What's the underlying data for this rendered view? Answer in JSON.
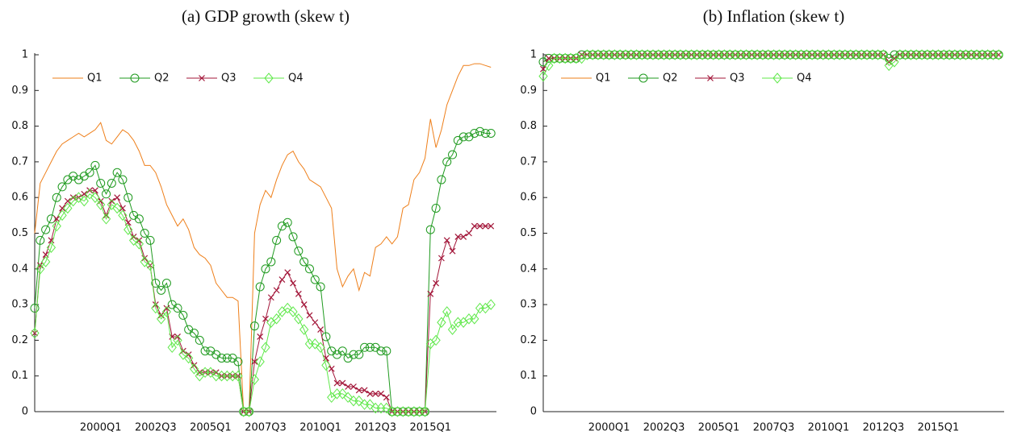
{
  "chart_data": [
    {
      "type": "line",
      "title": "(a) GDP growth (skew t)",
      "legend": "upper left",
      "grid": false,
      "ylim": [
        0,
        1
      ],
      "yticks": [
        0,
        0.1,
        0.2,
        0.3,
        0.4,
        0.5,
        0.6,
        0.7,
        0.8,
        0.9,
        1
      ],
      "categories": [
        null,
        null,
        null,
        null,
        null,
        null,
        null,
        null,
        null,
        null,
        null,
        null,
        "2000Q1",
        null,
        null,
        null,
        null,
        null,
        null,
        null,
        null,
        null,
        "2002Q3",
        null,
        null,
        null,
        null,
        null,
        null,
        null,
        null,
        null,
        "2005Q1",
        null,
        null,
        null,
        null,
        null,
        null,
        null,
        null,
        null,
        "2007Q3",
        null,
        null,
        null,
        null,
        null,
        null,
        null,
        null,
        null,
        "2010Q1",
        null,
        null,
        null,
        null,
        null,
        null,
        null,
        null,
        null,
        "2012Q3",
        null,
        null,
        null,
        null,
        null,
        null,
        null,
        null,
        null,
        "2015Q1",
        null,
        null,
        null,
        null,
        null,
        null,
        null,
        null,
        null,
        null,
        null
      ],
      "series": [
        {
          "name": "Q1",
          "color": "#ee7f1a",
          "marker": "none",
          "values": [
            0.5,
            0.64,
            0.67,
            0.7,
            0.73,
            0.75,
            0.76,
            0.77,
            0.78,
            0.77,
            0.78,
            0.79,
            0.81,
            0.76,
            0.75,
            0.77,
            0.79,
            0.78,
            0.76,
            0.73,
            0.69,
            0.69,
            0.67,
            0.63,
            0.58,
            0.55,
            0.52,
            0.54,
            0.51,
            0.46,
            0.44,
            0.43,
            0.41,
            0.36,
            0.34,
            0.32,
            0.32,
            0.31,
            0,
            0,
            0.5,
            0.58,
            0.62,
            0.6,
            0.65,
            0.69,
            0.72,
            0.73,
            0.7,
            0.68,
            0.65,
            0.64,
            0.63,
            0.6,
            0.57,
            0.4,
            0.35,
            0.38,
            0.4,
            0.34,
            0.39,
            0.38,
            0.46,
            0.47,
            0.49,
            0.47,
            0.49,
            0.57,
            0.58,
            0.65,
            0.67,
            0.71,
            0.82,
            0.74,
            0.79,
            0.86,
            0.9,
            0.94,
            0.97,
            0.97,
            0.975,
            0.975,
            0.97,
            0.965
          ]
        },
        {
          "name": "Q2",
          "color": "#1f9a1f",
          "marker": "circle",
          "values": [
            0.29,
            0.48,
            0.51,
            0.54,
            0.6,
            0.63,
            0.65,
            0.66,
            0.65,
            0.66,
            0.67,
            0.69,
            0.64,
            0.61,
            0.64,
            0.67,
            0.65,
            0.6,
            0.55,
            0.54,
            0.5,
            0.48,
            0.36,
            0.34,
            0.36,
            0.3,
            0.29,
            0.27,
            0.23,
            0.22,
            0.2,
            0.17,
            0.17,
            0.16,
            0.15,
            0.15,
            0.15,
            0.14,
            0,
            0,
            0.24,
            0.35,
            0.4,
            0.42,
            0.48,
            0.52,
            0.53,
            0.49,
            0.45,
            0.42,
            0.4,
            0.37,
            0.35,
            0.21,
            0.17,
            0.16,
            0.17,
            0.15,
            0.16,
            0.16,
            0.18,
            0.18,
            0.18,
            0.17,
            0.17,
            0,
            0,
            0,
            0,
            0,
            0,
            0,
            0.51,
            0.57,
            0.65,
            0.7,
            0.72,
            0.76,
            0.77,
            0.77,
            0.78,
            0.785,
            0.78,
            0.78
          ]
        },
        {
          "name": "Q3",
          "color": "#a3173a",
          "marker": "x",
          "values": [
            0.22,
            0.41,
            0.44,
            0.48,
            0.54,
            0.57,
            0.59,
            0.6,
            0.6,
            0.61,
            0.62,
            0.62,
            0.59,
            0.55,
            0.59,
            0.6,
            0.57,
            0.53,
            0.49,
            0.48,
            0.43,
            0.41,
            0.3,
            0.27,
            0.29,
            0.21,
            0.21,
            0.17,
            0.16,
            0.13,
            0.11,
            0.11,
            0.11,
            0.11,
            0.1,
            0.1,
            0.1,
            0.1,
            0,
            0,
            0.14,
            0.21,
            0.26,
            0.32,
            0.34,
            0.37,
            0.39,
            0.36,
            0.33,
            0.3,
            0.27,
            0.25,
            0.23,
            0.15,
            0.12,
            0.08,
            0.08,
            0.07,
            0.07,
            0.06,
            0.06,
            0.05,
            0.05,
            0.05,
            0.04,
            0,
            0,
            0,
            0,
            0,
            0,
            0,
            0.33,
            0.36,
            0.43,
            0.48,
            0.45,
            0.49,
            0.49,
            0.5,
            0.52,
            0.52,
            0.52,
            0.52
          ]
        },
        {
          "name": "Q4",
          "color": "#5fe84a",
          "marker": "diamond",
          "values": [
            0.22,
            0.4,
            0.42,
            0.46,
            0.52,
            0.55,
            0.57,
            0.59,
            0.6,
            0.59,
            0.61,
            0.6,
            0.58,
            0.54,
            0.58,
            0.57,
            0.55,
            0.51,
            0.48,
            0.47,
            0.42,
            0.41,
            0.29,
            0.26,
            0.28,
            0.18,
            0.2,
            0.16,
            0.15,
            0.12,
            0.1,
            0.11,
            0.11,
            0.1,
            0.1,
            0.1,
            0.1,
            0.1,
            0,
            0,
            0.09,
            0.14,
            0.18,
            0.25,
            0.26,
            0.28,
            0.29,
            0.28,
            0.26,
            0.23,
            0.19,
            0.19,
            0.18,
            0.13,
            0.04,
            0.05,
            0.05,
            0.04,
            0.03,
            0.03,
            0.02,
            0.02,
            0.01,
            0.01,
            0.01,
            0,
            0,
            0,
            0,
            0,
            0,
            0,
            0.19,
            0.2,
            0.25,
            0.28,
            0.23,
            0.25,
            0.25,
            0.26,
            0.26,
            0.29,
            0.29,
            0.3
          ]
        }
      ]
    },
    {
      "type": "line",
      "title": "(b) Inflation (skew t)",
      "legend": "upper left",
      "grid": false,
      "ylim": [
        0,
        1
      ],
      "yticks": [
        0,
        0.1,
        0.2,
        0.3,
        0.4,
        0.5,
        0.6,
        0.7,
        0.8,
        0.9,
        1
      ],
      "categories": [
        null,
        null,
        null,
        null,
        null,
        null,
        null,
        null,
        null,
        null,
        null,
        null,
        "2000Q1",
        null,
        null,
        null,
        null,
        null,
        null,
        null,
        null,
        null,
        "2002Q3",
        null,
        null,
        null,
        null,
        null,
        null,
        null,
        null,
        null,
        "2005Q1",
        null,
        null,
        null,
        null,
        null,
        null,
        null,
        null,
        null,
        "2007Q3",
        null,
        null,
        null,
        null,
        null,
        null,
        null,
        null,
        null,
        "2010Q1",
        null,
        null,
        null,
        null,
        null,
        null,
        null,
        null,
        null,
        "2012Q3",
        null,
        null,
        null,
        null,
        null,
        null,
        null,
        null,
        null,
        "2015Q1",
        null,
        null,
        null,
        null,
        null,
        null,
        null,
        null,
        null,
        null,
        null
      ],
      "series": [
        {
          "name": "Q1",
          "color": "#ee7f1a",
          "marker": "none",
          "values": [
            0.98,
            0.99,
            0.99,
            0.99,
            0.99,
            0.99,
            0.99,
            0.99,
            1,
            1,
            1,
            1,
            1,
            1,
            1,
            1,
            1,
            1,
            1,
            1,
            1,
            1,
            1,
            1,
            1,
            1,
            1,
            1,
            1,
            1,
            1,
            1,
            1,
            1,
            1,
            1,
            1,
            1,
            1,
            1,
            1,
            1,
            1,
            1,
            1,
            1,
            1,
            1,
            1,
            1,
            1,
            1,
            1,
            1,
            1,
            1,
            1,
            1,
            1,
            1,
            1,
            1,
            1,
            0.99,
            1,
            1,
            1,
            1,
            1,
            1,
            1,
            1,
            1,
            1,
            1,
            1,
            1,
            1,
            1,
            1,
            1,
            1,
            1,
            1
          ]
        },
        {
          "name": "Q2",
          "color": "#1f9a1f",
          "marker": "circle",
          "values": [
            0.98,
            0.99,
            0.99,
            0.99,
            0.99,
            0.99,
            0.99,
            1,
            1,
            1,
            1,
            1,
            1,
            1,
            1,
            1,
            1,
            1,
            1,
            1,
            1,
            1,
            1,
            1,
            1,
            1,
            1,
            1,
            1,
            1,
            1,
            1,
            1,
            1,
            1,
            1,
            1,
            1,
            1,
            1,
            1,
            1,
            1,
            1,
            1,
            1,
            1,
            1,
            1,
            1,
            1,
            1,
            1,
            1,
            1,
            1,
            1,
            1,
            1,
            1,
            1,
            1,
            1,
            0.99,
            1,
            1,
            1,
            1,
            1,
            1,
            1,
            1,
            1,
            1,
            1,
            1,
            1,
            1,
            1,
            1,
            1,
            1,
            1,
            1
          ]
        },
        {
          "name": "Q3",
          "color": "#a3173a",
          "marker": "x",
          "values": [
            0.96,
            0.99,
            0.99,
            0.99,
            0.99,
            0.99,
            0.99,
            1,
            1,
            1,
            1,
            1,
            1,
            1,
            1,
            1,
            1,
            1,
            1,
            1,
            1,
            1,
            1,
            1,
            1,
            1,
            1,
            1,
            1,
            1,
            1,
            1,
            1,
            1,
            1,
            1,
            1,
            1,
            1,
            1,
            1,
            1,
            1,
            1,
            1,
            1,
            1,
            1,
            1,
            1,
            1,
            1,
            1,
            1,
            1,
            1,
            1,
            1,
            1,
            1,
            1,
            1,
            1,
            0.98,
            0.99,
            1,
            1,
            1,
            1,
            1,
            1,
            1,
            1,
            1,
            1,
            1,
            1,
            1,
            1,
            1,
            1,
            1,
            1,
            1
          ]
        },
        {
          "name": "Q4",
          "color": "#5fe84a",
          "marker": "diamond",
          "values": [
            0.94,
            0.97,
            0.99,
            0.99,
            0.99,
            0.99,
            0.99,
            0.99,
            1,
            1,
            1,
            1,
            1,
            1,
            1,
            1,
            1,
            1,
            1,
            1,
            1,
            1,
            1,
            1,
            1,
            1,
            1,
            1,
            1,
            1,
            1,
            1,
            1,
            1,
            1,
            1,
            1,
            1,
            1,
            1,
            1,
            1,
            1,
            1,
            1,
            1,
            1,
            1,
            1,
            1,
            1,
            1,
            1,
            1,
            1,
            1,
            1,
            1,
            1,
            1,
            1,
            1,
            1,
            0.97,
            0.98,
            1,
            1,
            1,
            1,
            1,
            1,
            1,
            1,
            1,
            1,
            1,
            1,
            1,
            1,
            1,
            1,
            1,
            1,
            1
          ]
        }
      ]
    }
  ]
}
